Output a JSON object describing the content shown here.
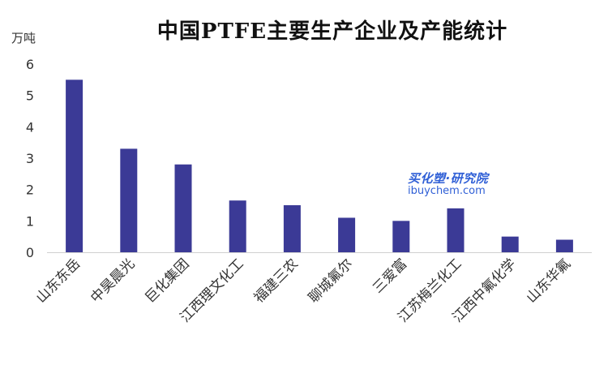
{
  "chart_data": {
    "type": "bar",
    "title": "中国PTFE主要生产企业及产能统计",
    "ylabel": "万吨",
    "xlabel": "",
    "ylim": [
      0,
      6
    ],
    "yticks": [
      "0",
      "1",
      "2",
      "3",
      "4",
      "5",
      "6"
    ],
    "grid": false,
    "bar_color": "#3b3a96",
    "categories": [
      "山东东岳",
      "中昊晨光",
      "巨化集团",
      "江西理文化工",
      "福建三农",
      "聊城氟尔",
      "三爱富",
      "江苏梅兰化工",
      "江西中氟化学",
      "山东华氟"
    ],
    "values": [
      5.5,
      3.3,
      2.8,
      1.65,
      1.5,
      1.1,
      1.0,
      1.4,
      0.5,
      0.4
    ]
  },
  "watermark": {
    "top": "买化塑·研究院",
    "bottom": "ibuychem.com"
  }
}
